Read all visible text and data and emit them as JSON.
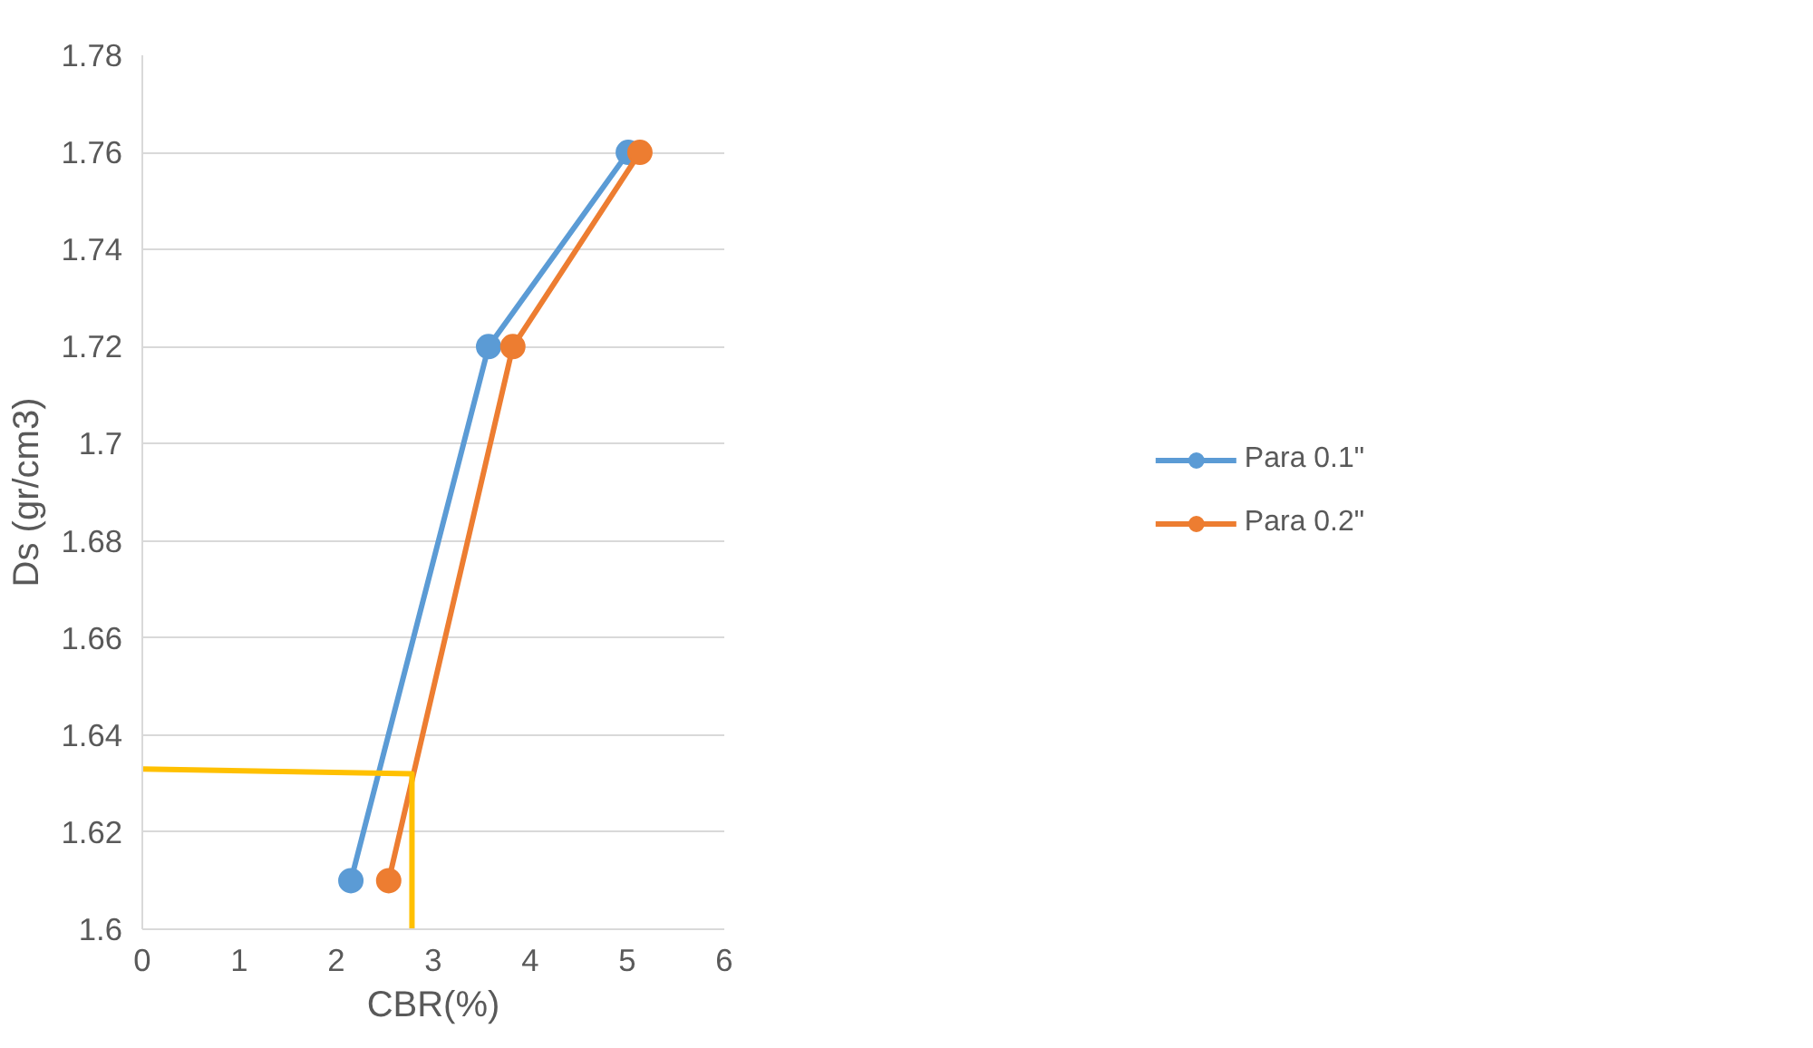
{
  "chart_data": {
    "type": "line",
    "xlabel": "CBR(%)",
    "ylabel": "Ds (gr/cm3)",
    "xlim": [
      0,
      6
    ],
    "xticks": [
      0,
      1,
      2,
      3,
      4,
      5,
      6
    ],
    "ylim": [
      1.6,
      1.78
    ],
    "yticks": [
      {
        "value": 1.6,
        "label": "1.6"
      },
      1.62,
      1.64,
      1.66,
      1.68,
      {
        "value": 1.7,
        "label": "1.7"
      },
      1.72,
      1.74,
      1.76,
      1.78
    ],
    "grid": "y",
    "legend": "right",
    "marker": "circle",
    "line_style": "solid",
    "series": [
      {
        "name": "Para 0.1\"",
        "color": "#5b9bd5",
        "x": [
          2.15,
          3.57,
          5.01
        ],
        "values": [
          1.61,
          1.72,
          1.76
        ]
      },
      {
        "name": "Para 0.2\"",
        "color": "#ed7d31",
        "x": [
          2.54,
          3.82,
          5.13
        ],
        "values": [
          1.61,
          1.72,
          1.76
        ]
      },
      {
        "color": "#ffc000",
        "marker": "none",
        "x": [
          0,
          2.78,
          2.78
        ],
        "values": [
          1.633,
          1.632,
          1.6
        ]
      }
    ]
  }
}
